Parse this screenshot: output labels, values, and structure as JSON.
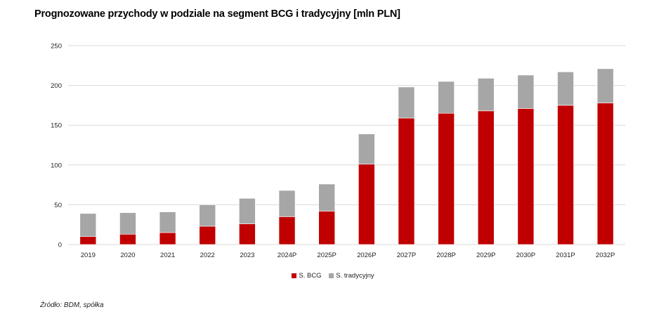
{
  "chart_data": {
    "type": "bar",
    "stacked": true,
    "title": "Prognozowane przychody w podziale na segment BCG i tradycyjny [mln PLN]",
    "xlabel": "",
    "ylabel": "",
    "ylim": [
      0,
      250
    ],
    "yticks": [
      0,
      50,
      100,
      150,
      200,
      250
    ],
    "grid": true,
    "legend_position": "bottom-center",
    "categories": [
      "2019",
      "2020",
      "2021",
      "2022",
      "2023",
      "2024P",
      "2025P",
      "2026P",
      "2027P",
      "2028P",
      "2029P",
      "2030P",
      "2031P",
      "2032P"
    ],
    "series": [
      {
        "name": "S. BCG",
        "color": "#C00000",
        "values": [
          10,
          13,
          15,
          23,
          26,
          35,
          42,
          101,
          159,
          165,
          168,
          171,
          175,
          178
        ]
      },
      {
        "name": "S. tradycyjny",
        "color": "#A6A6A6",
        "values": [
          29,
          27,
          26,
          27,
          32,
          33,
          34,
          38,
          39,
          40,
          41,
          42,
          42,
          43
        ]
      }
    ]
  },
  "source_note": "Źródło: BDM, spółka",
  "gridline_color": "#D9D9D9"
}
